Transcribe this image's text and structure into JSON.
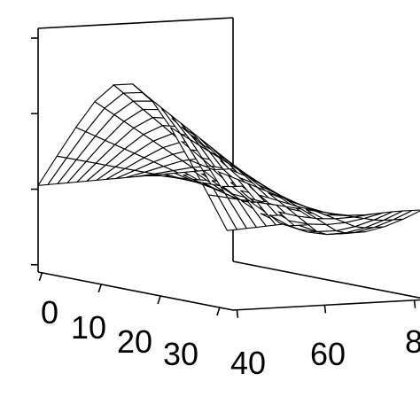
{
  "chart_data": {
    "type": "surface",
    "title": "",
    "x_ticks": [
      "0",
      "10",
      "20",
      "30"
    ],
    "y_ticks": [
      "40",
      "60",
      "8"
    ],
    "z_ticks_count": 4,
    "grid": false,
    "surface": {
      "description_shape": "saddle",
      "u_range": [
        0,
        35
      ],
      "v_range": [
        40,
        100
      ],
      "u_steps": 10,
      "v_steps": 20
    }
  }
}
